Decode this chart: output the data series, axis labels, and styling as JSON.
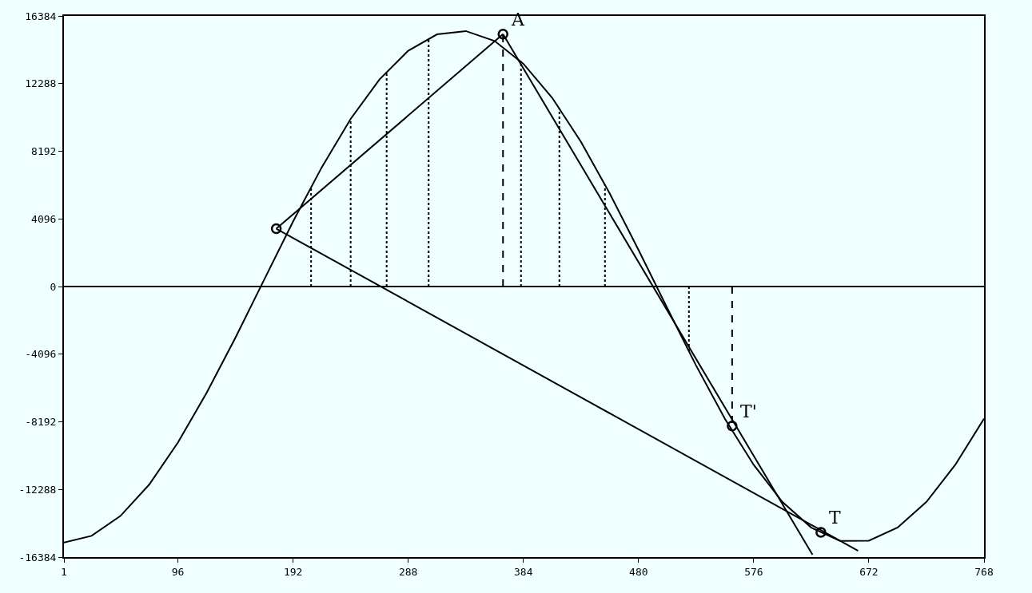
{
  "chart_data": {
    "type": "line",
    "xlim": [
      1,
      768
    ],
    "xticks": [
      1,
      96,
      192,
      288,
      384,
      480,
      576,
      672,
      768
    ],
    "ylim": [
      -16384,
      16384
    ],
    "yticks": [
      -16384,
      -12288,
      -8192,
      -4096,
      0,
      4096,
      8192,
      12288,
      16384
    ],
    "grid": false,
    "ref_lines": [
      {
        "axis": "y",
        "value": 0,
        "label": null,
        "color": "#000000",
        "line_style": "solid"
      }
    ],
    "series": [
      {
        "color": "#000000",
        "marker": "none",
        "line_style": "solid",
        "x": [
          1,
          24,
          48,
          72,
          96,
          120,
          144,
          168,
          192,
          216,
          240,
          264,
          288,
          312,
          336,
          360,
          384,
          408,
          432,
          456,
          480,
          504,
          528,
          552,
          576,
          600,
          624,
          648,
          672,
          696,
          720,
          744,
          768
        ],
        "values": [
          -15500,
          -15100,
          -13900,
          -12000,
          -9450,
          -6430,
          -3090,
          430,
          3940,
          7230,
          10150,
          12540,
          14280,
          15270,
          15470,
          14870,
          13490,
          11430,
          8760,
          5630,
          2210,
          -1320,
          -4790,
          -8010,
          -10800,
          -13050,
          -14600,
          -15400,
          -15390,
          -14590,
          -13040,
          -10800,
          -8000
        ]
      },
      {
        "color": "#000000",
        "marker": "none",
        "line_style": "solid",
        "x": [
          178,
          367
        ],
        "values": [
          3500,
          15280
        ]
      },
      {
        "color": "#000000",
        "marker": "none",
        "line_style": "solid",
        "x": [
          367,
          625
        ],
        "values": [
          15280,
          -16240
        ]
      },
      {
        "color": "#000000",
        "marker": "none",
        "line_style": "solid",
        "x": [
          178,
          663
        ],
        "values": [
          3500,
          -16000
        ]
      },
      {
        "color": "#000000",
        "marker": "none",
        "line_style": "dotted",
        "x": [
          207,
          207,
          null,
          240,
          240,
          null,
          270,
          270,
          null,
          305,
          305,
          null,
          382,
          382,
          null,
          414,
          414,
          null,
          452,
          452,
          null,
          522,
          522
        ],
        "values": [
          0,
          6030,
          null,
          0,
          10150,
          null,
          0,
          13040,
          null,
          0,
          15070,
          null,
          0,
          13640,
          null,
          0,
          10800,
          null,
          0,
          6180,
          null,
          0,
          -3940
        ]
      },
      {
        "color": "#000000",
        "marker": "none",
        "line_style": "dashed",
        "x": [
          367,
          367,
          null,
          558,
          558
        ],
        "values": [
          0,
          15280,
          null,
          0,
          -8450
        ]
      },
      {
        "type": "scatter",
        "color": "#000000",
        "marker": "circle",
        "x": [
          178,
          367,
          558,
          632
        ],
        "values": [
          3500,
          15280,
          -8450,
          -14880
        ]
      }
    ],
    "annotations": [
      {
        "text": "A",
        "x": 367,
        "y": 15280
      },
      {
        "text": "T'",
        "x": 558,
        "y": -8450
      },
      {
        "text": "T",
        "x": 632,
        "y": -14880
      }
    ]
  }
}
